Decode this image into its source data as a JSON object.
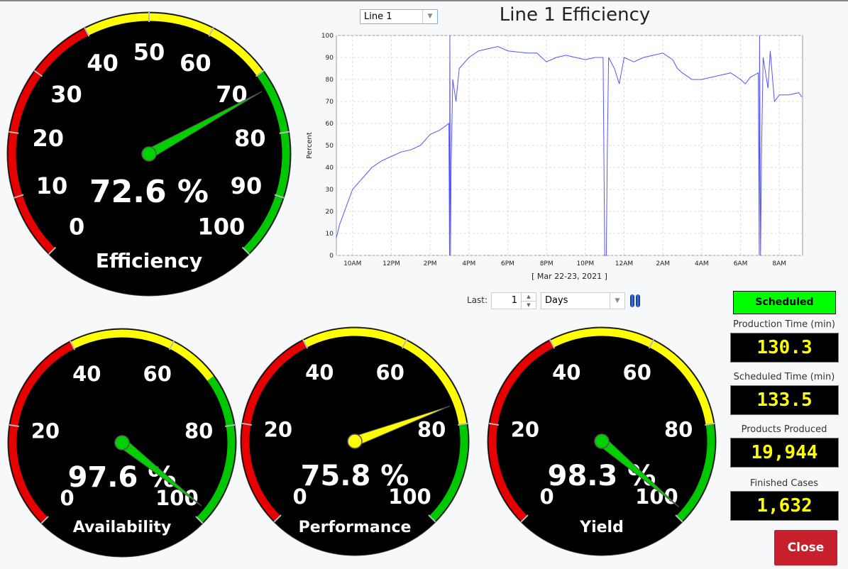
{
  "header": {
    "line_select": "Line 1",
    "title": "Line 1 Efficiency"
  },
  "controls": {
    "last_label": "Last:",
    "last_value": "1",
    "unit": "Days",
    "pause_icon": "pause-icon"
  },
  "status": {
    "label": "Scheduled",
    "color": "#00ff00"
  },
  "stats": [
    {
      "label": "Production Time (min)",
      "value": "130.3"
    },
    {
      "label": "Scheduled Time (min)",
      "value": "133.5"
    },
    {
      "label": "Products Produced",
      "value": "19,944"
    },
    {
      "label": "Finished Cases",
      "value": "1,632"
    }
  ],
  "close_label": "Close",
  "colors": {
    "red": "#e60000",
    "yellow": "#ffff00",
    "green": "#00c800",
    "line": "#5555ff",
    "close": "#c8202a"
  },
  "gauges": [
    {
      "name": "Efficiency",
      "value": 72.6,
      "display": "72.6 %",
      "ticks": [
        "0",
        "10",
        "20",
        "30",
        "40",
        "50",
        "60",
        "70",
        "80",
        "90",
        "100"
      ],
      "needle_color": "#00d000",
      "zones": [
        [
          0,
          40,
          "red"
        ],
        [
          40,
          70,
          "yellow"
        ],
        [
          70,
          100,
          "green"
        ]
      ]
    },
    {
      "name": "Availability",
      "value": 97.6,
      "display": "97.6 %",
      "ticks": [
        "0",
        "20",
        "40",
        "60",
        "80",
        "100"
      ],
      "needle_color": "#00d000",
      "zones": [
        [
          0,
          40,
          "red"
        ],
        [
          40,
          70,
          "yellow"
        ],
        [
          70,
          100,
          "green"
        ]
      ]
    },
    {
      "name": "Performance",
      "value": 75.8,
      "display": "75.8 %",
      "ticks": [
        "0",
        "20",
        "40",
        "60",
        "80",
        "100"
      ],
      "needle_color": "#ffff00",
      "zones": [
        [
          0,
          40,
          "red"
        ],
        [
          40,
          80,
          "yellow"
        ],
        [
          80,
          100,
          "green"
        ]
      ]
    },
    {
      "name": "Yield",
      "value": 98.3,
      "display": "98.3 %",
      "ticks": [
        "0",
        "20",
        "40",
        "60",
        "80",
        "100"
      ],
      "needle_color": "#00d000",
      "zones": [
        [
          0,
          40,
          "red"
        ],
        [
          40,
          80,
          "yellow"
        ],
        [
          80,
          100,
          "green"
        ]
      ]
    }
  ],
  "chart_data": {
    "type": "line",
    "title": "Line 1 Efficiency",
    "ylabel": "Percent",
    "xlabel": "[ Mar 22-23, 2021 ]",
    "ylim": [
      0,
      100
    ],
    "xlim": [
      "2021-03-22T09:10",
      "2021-03-23T09:12"
    ],
    "yticks": [
      "0",
      "10",
      "20",
      "30",
      "40",
      "50",
      "60",
      "70",
      "80",
      "90",
      "100"
    ],
    "xticks": [
      [
        "2021-03-22T10:00",
        "10AM"
      ],
      [
        "2021-03-22T12:00",
        "12PM"
      ],
      [
        "2021-03-22T14:00",
        "2PM"
      ],
      [
        "2021-03-22T16:00",
        "4PM"
      ],
      [
        "2021-03-22T18:00",
        "6PM"
      ],
      [
        "2021-03-22T20:00",
        "8PM"
      ],
      [
        "2021-03-22T22:00",
        "10PM"
      ],
      [
        "2021-03-23T00:00",
        "12AM"
      ],
      [
        "2021-03-23T02:00",
        "2AM"
      ],
      [
        "2021-03-23T04:00",
        "4AM"
      ],
      [
        "2021-03-23T06:00",
        "6AM"
      ],
      [
        "2021-03-23T08:00",
        "8AM"
      ]
    ],
    "grid": true,
    "series": [
      {
        "color": "#5555ff",
        "points": [
          [
            "2021-03-22T09:10",
            8
          ],
          [
            "2021-03-22T09:20",
            14
          ],
          [
            "2021-03-22T09:40",
            22
          ],
          [
            "2021-03-22T10:00",
            30
          ],
          [
            "2021-03-22T10:30",
            35
          ],
          [
            "2021-03-22T11:00",
            40
          ],
          [
            "2021-03-22T11:30",
            43
          ],
          [
            "2021-03-22T12:00",
            45
          ],
          [
            "2021-03-22T12:30",
            47
          ],
          [
            "2021-03-22T13:00",
            48
          ],
          [
            "2021-03-22T13:30",
            50
          ],
          [
            "2021-03-22T14:00",
            55
          ],
          [
            "2021-03-22T14:30",
            57
          ],
          [
            "2021-03-22T14:58",
            60
          ],
          [
            "2021-03-22T15:00",
            0
          ],
          [
            "2021-03-22T15:01",
            100
          ],
          [
            "2021-03-22T15:03",
            0
          ],
          [
            "2021-03-22T15:05",
            41
          ],
          [
            "2021-03-22T15:10",
            80
          ],
          [
            "2021-03-22T15:20",
            70
          ],
          [
            "2021-03-22T15:30",
            85
          ],
          [
            "2021-03-22T16:00",
            90
          ],
          [
            "2021-03-22T16:30",
            93
          ],
          [
            "2021-03-22T17:00",
            94
          ],
          [
            "2021-03-22T17:30",
            95
          ],
          [
            "2021-03-22T18:00",
            93
          ],
          [
            "2021-03-22T19:00",
            92
          ],
          [
            "2021-03-22T19:30",
            92
          ],
          [
            "2021-03-22T20:00",
            88
          ],
          [
            "2021-03-22T20:30",
            90
          ],
          [
            "2021-03-22T21:00",
            91
          ],
          [
            "2021-03-22T21:30",
            90
          ],
          [
            "2021-03-22T22:00",
            89
          ],
          [
            "2021-03-22T22:30",
            90
          ],
          [
            "2021-03-22T22:55",
            90
          ],
          [
            "2021-03-22T23:00",
            0
          ],
          [
            "2021-03-22T23:05",
            0
          ],
          [
            "2021-03-22T23:08",
            47
          ],
          [
            "2021-03-22T23:12",
            90
          ],
          [
            "2021-03-22T23:30",
            85
          ],
          [
            "2021-03-22T23:45",
            78
          ],
          [
            "2021-03-23T00:00",
            90
          ],
          [
            "2021-03-23T00:30",
            88
          ],
          [
            "2021-03-23T01:00",
            90
          ],
          [
            "2021-03-23T01:30",
            91
          ],
          [
            "2021-03-23T02:00",
            92
          ],
          [
            "2021-03-23T02:30",
            89
          ],
          [
            "2021-03-23T02:45",
            85
          ],
          [
            "2021-03-23T03:00",
            83
          ],
          [
            "2021-03-23T03:30",
            80
          ],
          [
            "2021-03-23T04:00",
            80
          ],
          [
            "2021-03-23T04:30",
            81
          ],
          [
            "2021-03-23T05:00",
            82
          ],
          [
            "2021-03-23T05:30",
            83
          ],
          [
            "2021-03-23T06:00",
            80
          ],
          [
            "2021-03-23T06:15",
            78
          ],
          [
            "2021-03-23T06:30",
            81
          ],
          [
            "2021-03-23T06:55",
            83
          ],
          [
            "2021-03-23T06:58",
            0
          ],
          [
            "2021-03-23T06:59",
            100
          ],
          [
            "2021-03-23T07:02",
            0
          ],
          [
            "2021-03-23T07:05",
            46
          ],
          [
            "2021-03-23T07:10",
            90
          ],
          [
            "2021-03-23T07:25",
            76
          ],
          [
            "2021-03-23T07:32",
            93
          ],
          [
            "2021-03-23T07:45",
            70
          ],
          [
            "2021-03-23T08:00",
            73
          ],
          [
            "2021-03-23T08:30",
            73
          ],
          [
            "2021-03-23T09:00",
            74
          ],
          [
            "2021-03-23T09:10",
            72
          ]
        ]
      }
    ]
  }
}
